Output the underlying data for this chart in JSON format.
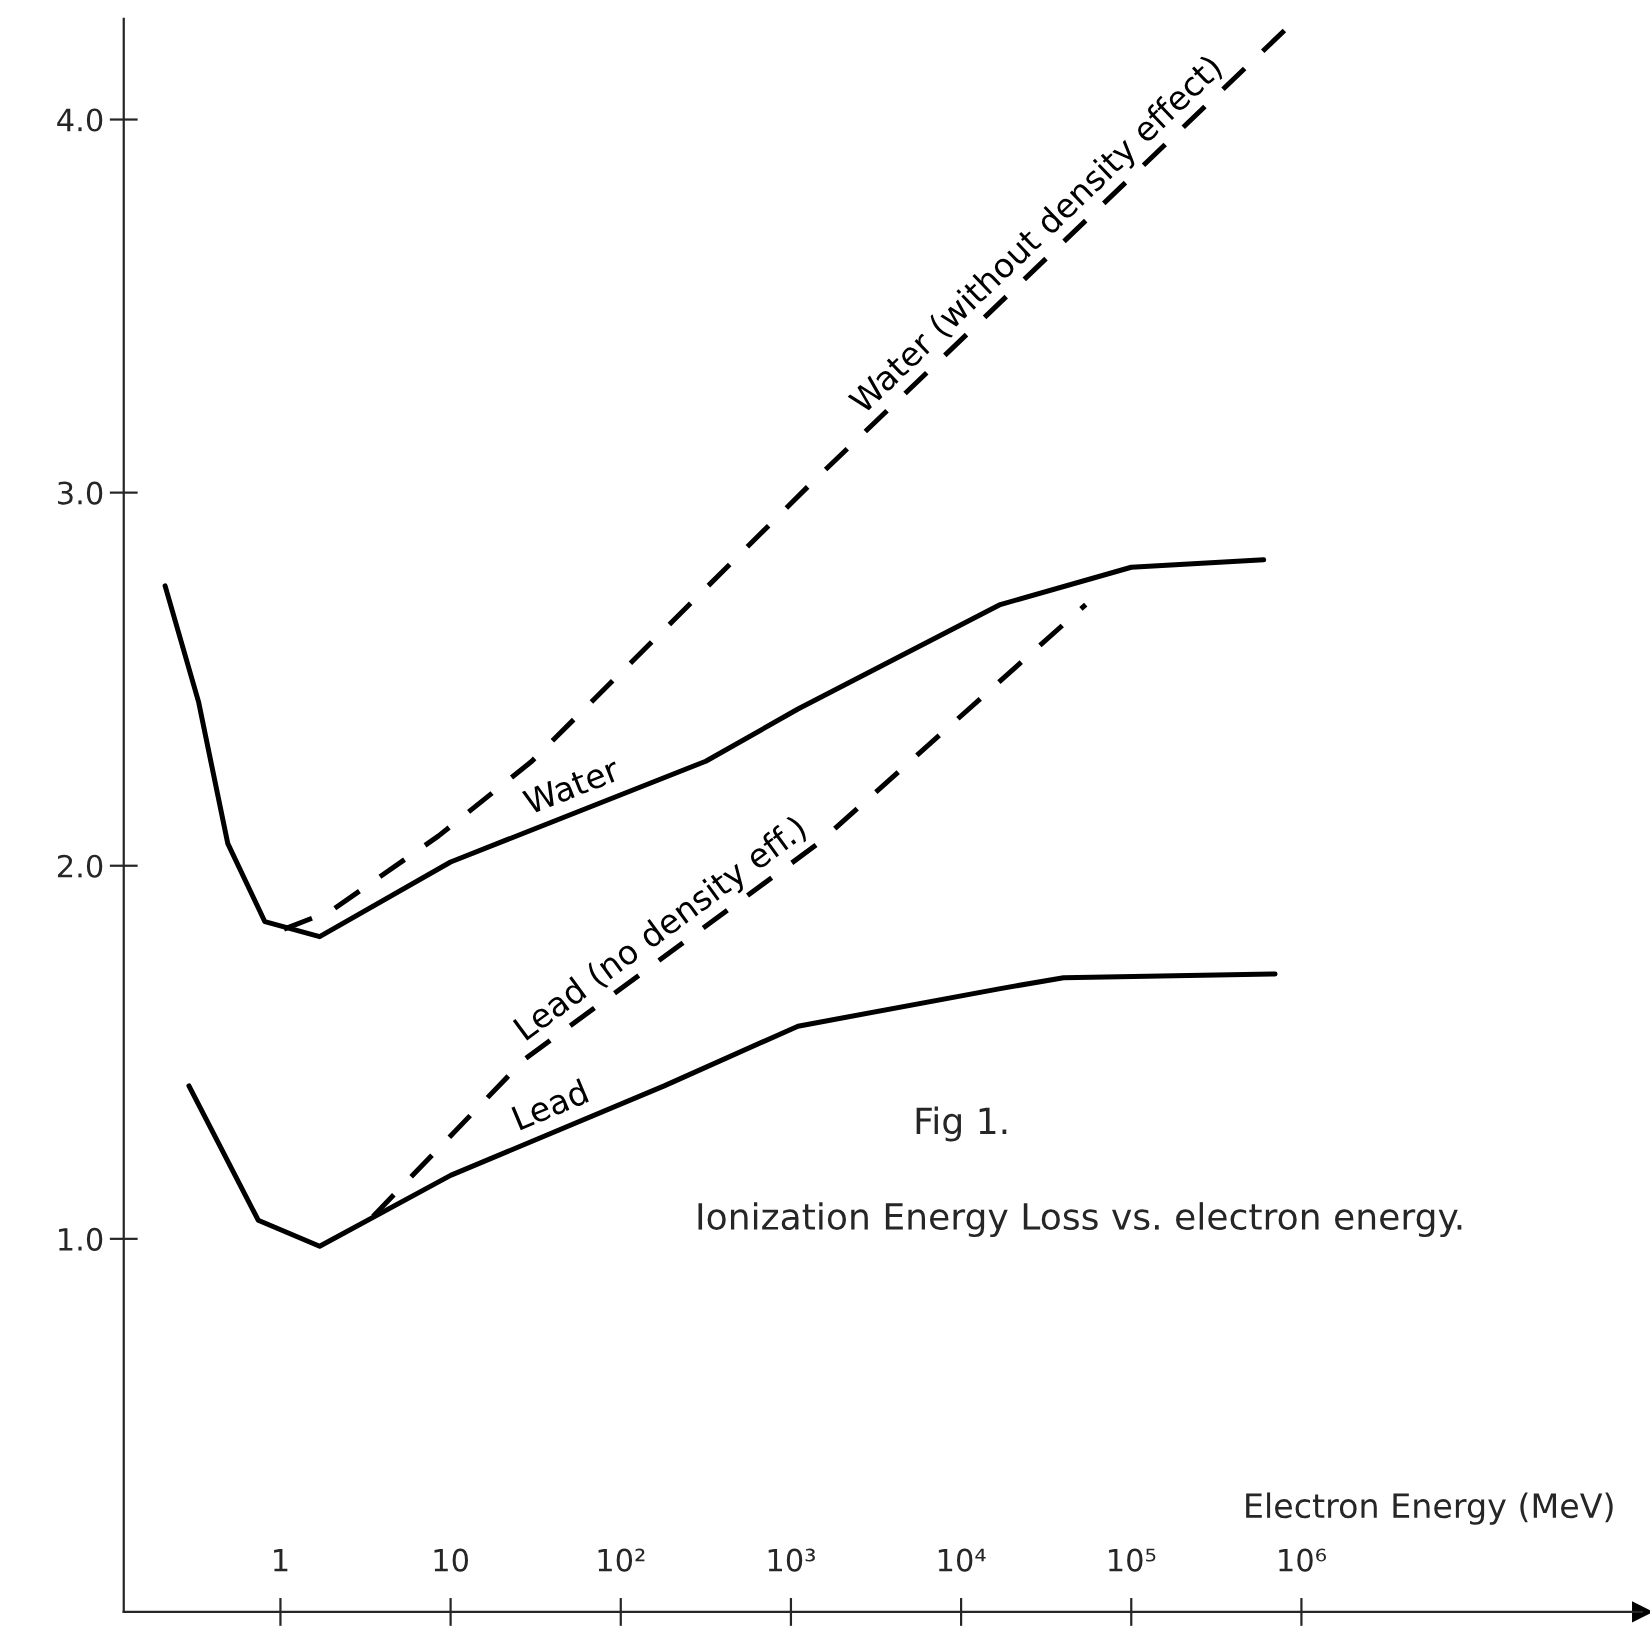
{
  "chart_data": {
    "type": "line",
    "title": "Fig 1.",
    "subtitle": "Ionization Energy Loss vs. electron energy.",
    "xlabel": "Electron Energy (MeV)",
    "log": "x",
    "xlim": [
      0.12,
      100000000
    ],
    "ylim": [
      0,
      4.27
    ],
    "xticks": [
      1,
      10,
      {
        "value": 100,
        "label": "10²"
      },
      {
        "value": 1000,
        "label": "10³"
      },
      {
        "value": 10000,
        "label": "10⁴"
      },
      {
        "value": 100000,
        "label": "10⁵"
      },
      {
        "value": 1000000,
        "label": "10⁶"
      }
    ],
    "yticks": [
      {
        "value": 1,
        "label": "1.0"
      },
      {
        "value": 2,
        "label": "2.0"
      },
      {
        "value": 3,
        "label": "3.0"
      },
      {
        "value": 4,
        "label": "4.0"
      }
    ],
    "grid": false,
    "legend": false,
    "marker": "none",
    "series": [
      {
        "name": "Water (without density effect)",
        "color": "#000000",
        "line_style": "dashed",
        "x": [
          1.05,
          2,
          8.5,
          30,
          1350,
          800000
        ],
        "values": [
          1.83,
          1.88,
          2.08,
          2.28,
          3.03,
          4.24
        ]
      },
      {
        "name": "Water",
        "color": "#000000",
        "line_style": "solid",
        "x": [
          0.21,
          0.33,
          0.49,
          0.81,
          1.7,
          10,
          316,
          1100,
          17000,
          100000,
          600000
        ],
        "values": [
          2.75,
          2.44,
          2.06,
          1.85,
          1.81,
          2.01,
          2.28,
          2.42,
          2.7,
          2.8,
          2.82
        ]
      },
      {
        "name": "Lead (no density eff.)",
        "color": "#000000",
        "line_style": "dashed",
        "x": [
          3.5,
          27,
          1450,
          54000
        ],
        "values": [
          1.06,
          1.48,
          2.06,
          2.7
        ]
      },
      {
        "name": "Lead",
        "color": "#000000",
        "line_style": "solid",
        "x": [
          0.29,
          0.74,
          1.7,
          10,
          180,
          1100,
          16700,
          40000,
          700000
        ],
        "values": [
          1.41,
          1.05,
          0.98,
          1.17,
          1.41,
          1.57,
          1.67,
          1.7,
          1.71
        ]
      }
    ]
  }
}
